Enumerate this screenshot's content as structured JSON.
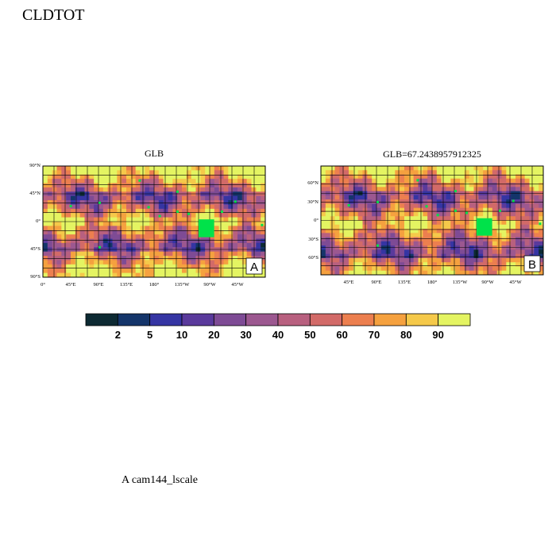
{
  "title": "CLDTOT",
  "footer": "A  cam144_lscale",
  "colors": {
    "palette": [
      "#0d2a33",
      "#14356a",
      "#3535a3",
      "#5a3a9c",
      "#7e4b95",
      "#9c5890",
      "#b8607f",
      "#d26a68",
      "#ec7f4f",
      "#f5a13f",
      "#f5c94a",
      "#e4f462"
    ],
    "marker": "#00e24a",
    "border": "#000000"
  },
  "panels": [
    {
      "id": "A",
      "title": "GLB",
      "label": "A",
      "lat_ticks": [
        "90°N",
        "45°N",
        "0°",
        "45°S",
        "90°S"
      ],
      "lon_ticks": [
        "0°",
        "45°E",
        "90°E",
        "135°E",
        "180°",
        "135°W",
        "90°W",
        "45°W"
      ]
    },
    {
      "id": "B",
      "title": "GLB=67.2438957912325",
      "label": "B",
      "lat_ticks": [
        "60°N",
        "30°N",
        "0°",
        "30°S",
        "60°S"
      ],
      "lon_ticks": [
        "45°E",
        "90°E",
        "135°E",
        "180°",
        "135°W",
        "90°W",
        "45°W"
      ]
    }
  ],
  "chart_data": {
    "type": "heatmap",
    "variable": "CLDTOT",
    "colorbar": {
      "levels": [
        2,
        5,
        10,
        20,
        30,
        40,
        50,
        60,
        70,
        80,
        90
      ],
      "labels": [
        "2",
        "5",
        "10",
        "20",
        "30",
        "40",
        "50",
        "60",
        "70",
        "80",
        "90"
      ]
    }
  }
}
